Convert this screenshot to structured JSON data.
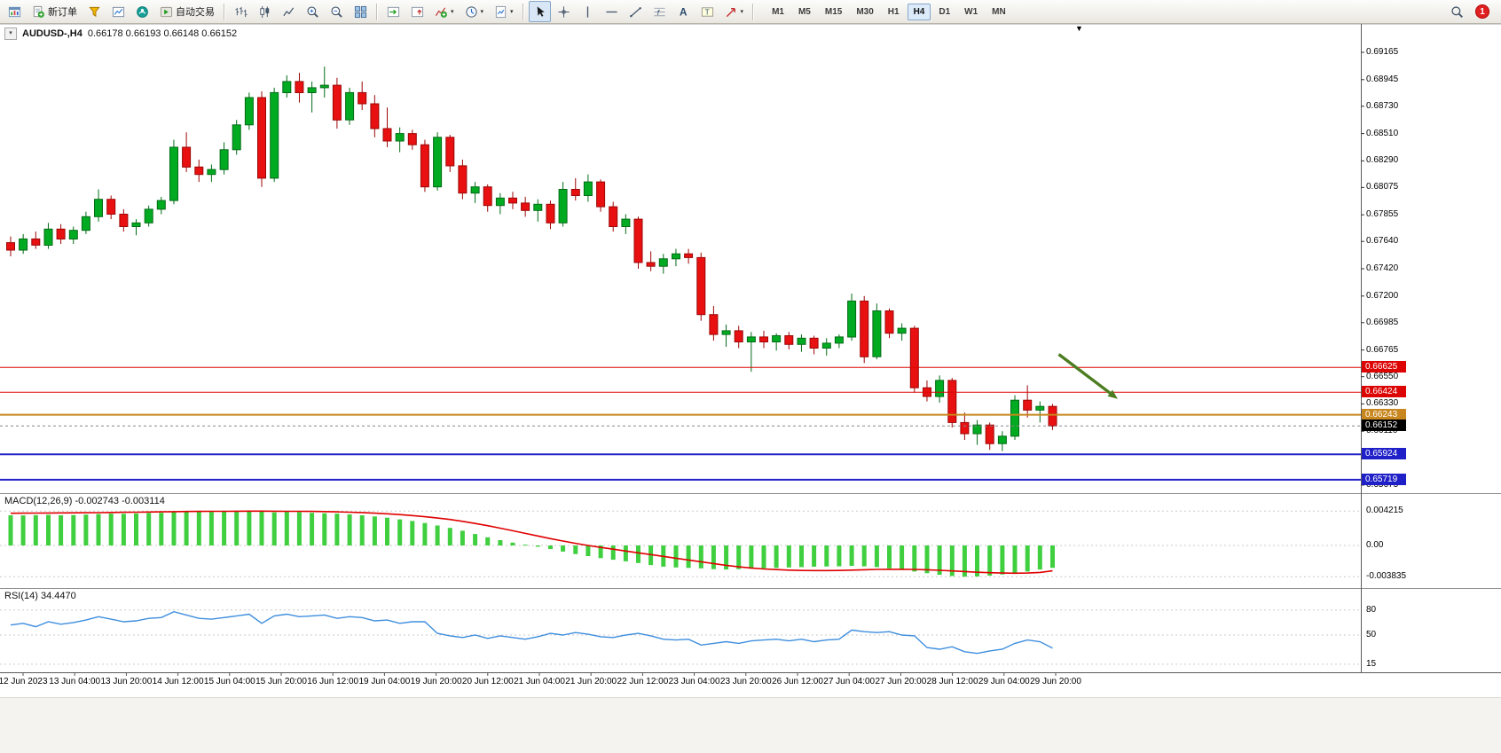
{
  "toolbar": {
    "new_order_label": "新订单",
    "autotrade_label": "自动交易",
    "notification_count": "1",
    "timeframes": [
      "M1",
      "M5",
      "M15",
      "M30",
      "H1",
      "H4",
      "D1",
      "W1",
      "MN"
    ],
    "active_timeframe": "H4",
    "items": [
      {
        "name": "app"
      },
      {
        "name": "new-order",
        "label": "新订单"
      },
      {
        "name": "profiles"
      },
      {
        "name": "charts"
      },
      {
        "name": "community"
      },
      {
        "name": "autotrade",
        "label": "自动交易"
      },
      {
        "sep": true
      },
      {
        "name": "bar-chart"
      },
      {
        "name": "candle-chart"
      },
      {
        "name": "line-chart"
      },
      {
        "name": "zoom-in"
      },
      {
        "name": "zoom-out"
      },
      {
        "name": "tile-windows"
      },
      {
        "sep": true
      },
      {
        "name": "auto-scroll"
      },
      {
        "name": "chart-shift"
      },
      {
        "name": "indicators",
        "caret": true
      },
      {
        "name": "periods",
        "caret": true
      },
      {
        "name": "templates",
        "caret": true
      },
      {
        "sep": true
      },
      {
        "name": "cursor",
        "active": true
      },
      {
        "name": "crosshair"
      },
      {
        "name": "vertical-line"
      },
      {
        "name": "horizontal-line"
      },
      {
        "name": "trend-line"
      },
      {
        "name": "fibonacci"
      },
      {
        "name": "text"
      },
      {
        "name": "text-label"
      },
      {
        "name": "arrow-tools",
        "caret": true
      },
      {
        "sep": true
      }
    ]
  },
  "chart": {
    "title_symbol": "AUDUSD-,H4",
    "title_ohlc": "0.66178 0.66193 0.66148 0.66152",
    "colors": {
      "bull": "#00AB22",
      "bull_border": "#046B16",
      "bear": "#E81010",
      "bear_border": "#9C0707",
      "macd_bar": "#3FCF3F",
      "macd_signal": "#E00000",
      "rsi_line": "#3E8EDE",
      "level_red": "#DD0404",
      "level_orange": "#C8871E",
      "level_blue": "#2020C8",
      "bid": "#000000",
      "arrow": "#4C7D21"
    }
  },
  "chart_data": {
    "type": "candlestick",
    "symbol": "AUDUSD-",
    "period": "H4",
    "ohlc_display": {
      "open": 0.66178,
      "high": 0.66193,
      "low": 0.66148,
      "close": 0.66152
    },
    "price_axis": {
      "ticks": [
        0.69165,
        0.68945,
        0.6873,
        0.6851,
        0.6829,
        0.68075,
        0.67855,
        0.6764,
        0.6742,
        0.672,
        0.66985,
        0.66765,
        0.6655,
        0.6633,
        0.6611,
        0.65895,
        0.65675
      ]
    },
    "time_labels": [
      "12 Jun 2023",
      "13 Jun 04:00",
      "13 Jun 20:00",
      "14 Jun 12:00",
      "15 Jun 04:00",
      "15 Jun 20:00",
      "16 Jun 12:00",
      "19 Jun 04:00",
      "19 Jun 20:00",
      "20 Jun 12:00",
      "21 Jun 04:00",
      "21 Jun 20:00",
      "22 Jun 12:00",
      "23 Jun 04:00",
      "23 Jun 20:00",
      "26 Jun 12:00",
      "27 Jun 04:00",
      "27 Jun 20:00",
      "28 Jun 12:00",
      "29 Jun 04:00",
      "29 Jun 20:00"
    ],
    "candles": [
      [
        0.6763,
        0.6768,
        0.6752,
        0.6757
      ],
      [
        0.6757,
        0.677,
        0.6754,
        0.6766
      ],
      [
        0.6766,
        0.6772,
        0.6758,
        0.6761
      ],
      [
        0.6761,
        0.6779,
        0.6758,
        0.6774
      ],
      [
        0.6774,
        0.6778,
        0.6762,
        0.6766
      ],
      [
        0.6766,
        0.6776,
        0.6762,
        0.6773
      ],
      [
        0.6773,
        0.6788,
        0.677,
        0.6784
      ],
      [
        0.6784,
        0.6806,
        0.678,
        0.6798
      ],
      [
        0.6798,
        0.6801,
        0.6782,
        0.6786
      ],
      [
        0.6786,
        0.679,
        0.6772,
        0.6776
      ],
      [
        0.6776,
        0.6782,
        0.6769,
        0.6779
      ],
      [
        0.6779,
        0.6793,
        0.6776,
        0.679
      ],
      [
        0.679,
        0.68,
        0.6786,
        0.6797
      ],
      [
        0.6797,
        0.6846,
        0.6794,
        0.684
      ],
      [
        0.684,
        0.6852,
        0.682,
        0.6824
      ],
      [
        0.6824,
        0.683,
        0.6812,
        0.6818
      ],
      [
        0.6818,
        0.6826,
        0.6812,
        0.6822
      ],
      [
        0.6822,
        0.6844,
        0.6818,
        0.6838
      ],
      [
        0.6838,
        0.6862,
        0.6834,
        0.6858
      ],
      [
        0.6858,
        0.6884,
        0.6854,
        0.688
      ],
      [
        0.688,
        0.6885,
        0.6808,
        0.6815
      ],
      [
        0.6815,
        0.6888,
        0.6812,
        0.6884
      ],
      [
        0.6884,
        0.6898,
        0.688,
        0.6893
      ],
      [
        0.6893,
        0.69,
        0.6876,
        0.6884
      ],
      [
        0.6884,
        0.6893,
        0.6868,
        0.6888
      ],
      [
        0.6888,
        0.6905,
        0.688,
        0.689
      ],
      [
        0.689,
        0.6896,
        0.6855,
        0.6862
      ],
      [
        0.6862,
        0.6888,
        0.6858,
        0.6884
      ],
      [
        0.6884,
        0.6893,
        0.687,
        0.6875
      ],
      [
        0.6875,
        0.6882,
        0.6848,
        0.6855
      ],
      [
        0.6855,
        0.6872,
        0.684,
        0.6845
      ],
      [
        0.6845,
        0.6856,
        0.6836,
        0.6851
      ],
      [
        0.6851,
        0.6854,
        0.6838,
        0.6842
      ],
      [
        0.6842,
        0.6846,
        0.6804,
        0.6808
      ],
      [
        0.6808,
        0.6852,
        0.6805,
        0.6848
      ],
      [
        0.6848,
        0.685,
        0.682,
        0.6825
      ],
      [
        0.6825,
        0.683,
        0.6798,
        0.6803
      ],
      [
        0.6803,
        0.6812,
        0.6795,
        0.6808
      ],
      [
        0.6808,
        0.681,
        0.6788,
        0.6793
      ],
      [
        0.6793,
        0.6803,
        0.6786,
        0.6799
      ],
      [
        0.6799,
        0.6804,
        0.679,
        0.6795
      ],
      [
        0.6795,
        0.68,
        0.6784,
        0.6789
      ],
      [
        0.6789,
        0.6798,
        0.678,
        0.6794
      ],
      [
        0.6794,
        0.6797,
        0.6774,
        0.6779
      ],
      [
        0.6779,
        0.6812,
        0.6776,
        0.6806
      ],
      [
        0.6806,
        0.6815,
        0.6797,
        0.6801
      ],
      [
        0.6801,
        0.6818,
        0.6796,
        0.6812
      ],
      [
        0.6812,
        0.6814,
        0.6788,
        0.6792
      ],
      [
        0.6792,
        0.6796,
        0.6772,
        0.6776
      ],
      [
        0.6776,
        0.6786,
        0.677,
        0.6782
      ],
      [
        0.6782,
        0.6784,
        0.6742,
        0.6747
      ],
      [
        0.6747,
        0.6756,
        0.674,
        0.6744
      ],
      [
        0.6744,
        0.6754,
        0.6738,
        0.675
      ],
      [
        0.675,
        0.6758,
        0.6744,
        0.6754
      ],
      [
        0.6754,
        0.6758,
        0.6746,
        0.6751
      ],
      [
        0.6751,
        0.6755,
        0.67,
        0.6705
      ],
      [
        0.6705,
        0.6712,
        0.6684,
        0.6689
      ],
      [
        0.6689,
        0.6697,
        0.6679,
        0.6692
      ],
      [
        0.6692,
        0.6696,
        0.6678,
        0.6683
      ],
      [
        0.6683,
        0.6691,
        0.6659,
        0.6687
      ],
      [
        0.6687,
        0.6692,
        0.6678,
        0.6683
      ],
      [
        0.6683,
        0.669,
        0.6676,
        0.6688
      ],
      [
        0.6688,
        0.6691,
        0.6677,
        0.6681
      ],
      [
        0.6681,
        0.6689,
        0.6675,
        0.6686
      ],
      [
        0.6686,
        0.6688,
        0.6673,
        0.6678
      ],
      [
        0.6678,
        0.6686,
        0.6672,
        0.6682
      ],
      [
        0.6682,
        0.6689,
        0.6678,
        0.6687
      ],
      [
        0.6687,
        0.6722,
        0.6684,
        0.6716
      ],
      [
        0.6716,
        0.672,
        0.6666,
        0.6671
      ],
      [
        0.6671,
        0.6714,
        0.6669,
        0.6708
      ],
      [
        0.6708,
        0.671,
        0.6686,
        0.669
      ],
      [
        0.669,
        0.6698,
        0.6684,
        0.6694
      ],
      [
        0.6694,
        0.6696,
        0.6642,
        0.6646
      ],
      [
        0.6646,
        0.6652,
        0.6635,
        0.6639
      ],
      [
        0.6639,
        0.6656,
        0.6634,
        0.6652
      ],
      [
        0.6652,
        0.6654,
        0.6614,
        0.6618
      ],
      [
        0.6618,
        0.6626,
        0.6604,
        0.6609
      ],
      [
        0.6609,
        0.662,
        0.66,
        0.6616
      ],
      [
        0.6616,
        0.6618,
        0.6596,
        0.6601
      ],
      [
        0.6601,
        0.6611,
        0.6595,
        0.6607
      ],
      [
        0.6607,
        0.664,
        0.6604,
        0.6636
      ],
      [
        0.6636,
        0.6648,
        0.6622,
        0.6628
      ],
      [
        0.6628,
        0.6635,
        0.6618,
        0.6631
      ],
      [
        0.6631,
        0.6633,
        0.6612,
        0.66152
      ]
    ],
    "levels": [
      {
        "price": 0.66625,
        "label": "0.66625",
        "color_key": "level_red",
        "width": 1
      },
      {
        "price": 0.66424,
        "label": "0.66424",
        "color_key": "level_red",
        "width": 1
      },
      {
        "price": 0.66243,
        "label": "0.66243",
        "color_key": "level_orange",
        "width": 2
      },
      {
        "price": 0.65924,
        "label": "0.65924",
        "color_key": "level_blue",
        "width": 2
      },
      {
        "price": 0.65719,
        "label": "0.65719",
        "color_key": "level_blue",
        "width": 2
      }
    ],
    "bid": {
      "price": 0.66152,
      "label": "0.66152"
    },
    "annotation_arrow": {
      "from_t": 83.5,
      "from_p": 0.6673,
      "to_t": 88.2,
      "to_p": 0.6637
    },
    "macd": {
      "name": "MACD(12,26,9)",
      "values_text": "-0.002743 -0.003114",
      "axis_ticks": [
        {
          "v": 0.004215,
          "label": "0.004215"
        },
        {
          "v": 0,
          "label": "0.00"
        },
        {
          "v": -0.003835,
          "label": "-0.003835"
        }
      ],
      "histogram": [
        0.0037,
        0.00368,
        0.00372,
        0.00375,
        0.0037,
        0.00373,
        0.00378,
        0.00385,
        0.0039,
        0.00388,
        0.00392,
        0.00398,
        0.004,
        0.00408,
        0.00415,
        0.00418,
        0.00412,
        0.00415,
        0.0042,
        0.00421,
        0.00415,
        0.00405,
        0.00412,
        0.0041,
        0.004,
        0.00395,
        0.0039,
        0.0038,
        0.0037,
        0.00355,
        0.0034,
        0.0032,
        0.003,
        0.00275,
        0.00245,
        0.00215,
        0.0018,
        0.0014,
        0.001,
        0.00065,
        0.00035,
        0.0001,
        -0.00015,
        -0.00045,
        -0.00075,
        -0.00105,
        -0.0013,
        -0.00155,
        -0.00175,
        -0.00195,
        -0.00215,
        -0.0024,
        -0.0026,
        -0.0027,
        -0.00275,
        -0.0028,
        -0.0029,
        -0.00295,
        -0.0029,
        -0.00285,
        -0.0028,
        -0.00275,
        -0.0027,
        -0.00265,
        -0.0026,
        -0.00258,
        -0.00255,
        -0.0025,
        -0.00255,
        -0.00265,
        -0.0028,
        -0.003,
        -0.0032,
        -0.0034,
        -0.0036,
        -0.00375,
        -0.00383,
        -0.0038,
        -0.0037,
        -0.00355,
        -0.0034,
        -0.0032,
        -0.00295,
        -0.00274
      ],
      "signal": [
        0.00395,
        0.00396,
        0.00397,
        0.00398,
        0.00399,
        0.004,
        0.00401,
        0.00402,
        0.00404,
        0.00406,
        0.00408,
        0.0041,
        0.00412,
        0.00414,
        0.00416,
        0.00417,
        0.00418,
        0.00419,
        0.0042,
        0.00421,
        0.00421,
        0.0042,
        0.00419,
        0.00418,
        0.00417,
        0.00415,
        0.00412,
        0.00408,
        0.00403,
        0.00396,
        0.00388,
        0.00378,
        0.00366,
        0.00352,
        0.00336,
        0.00318,
        0.00296,
        0.0027,
        0.00242,
        0.00212,
        0.0018,
        0.00148,
        0.00116,
        0.00084,
        0.00054,
        0.00026,
        0.0,
        -0.00024,
        -0.00046,
        -0.00068,
        -0.0009,
        -0.00112,
        -0.00134,
        -0.00156,
        -0.00178,
        -0.002,
        -0.00222,
        -0.00244,
        -0.00262,
        -0.00276,
        -0.00288,
        -0.00296,
        -0.00302,
        -0.00306,
        -0.00308,
        -0.00308,
        -0.00306,
        -0.00302,
        -0.00298,
        -0.00294,
        -0.00292,
        -0.00292,
        -0.00294,
        -0.00298,
        -0.00304,
        -0.00312,
        -0.0032,
        -0.00328,
        -0.00334,
        -0.00338,
        -0.0034,
        -0.00338,
        -0.0033,
        -0.00311
      ]
    },
    "rsi": {
      "name": "RSI(14)",
      "value_text": "34.4470",
      "levels": [
        {
          "v": 80,
          "label": "80"
        },
        {
          "v": 50,
          "label": "50"
        },
        {
          "v": 15,
          "label": "15"
        }
      ],
      "values": [
        62,
        64,
        60,
        66,
        63,
        65,
        68,
        72,
        69,
        66,
        67,
        70,
        71,
        78,
        74,
        70,
        69,
        71,
        73,
        75,
        64,
        73,
        75,
        72,
        73,
        74,
        70,
        72,
        71,
        67,
        68,
        64,
        66,
        66,
        52,
        49,
        47,
        50,
        46,
        49,
        47,
        45,
        48,
        52,
        50,
        53,
        51,
        48,
        47,
        50,
        52,
        49,
        45,
        44,
        45,
        38,
        40,
        42,
        40,
        43,
        44,
        45,
        43,
        45,
        42,
        44,
        45,
        56,
        54,
        53,
        54,
        50,
        49,
        35,
        33,
        36,
        30,
        28,
        31,
        33,
        40,
        44,
        42,
        34.4
      ]
    }
  }
}
